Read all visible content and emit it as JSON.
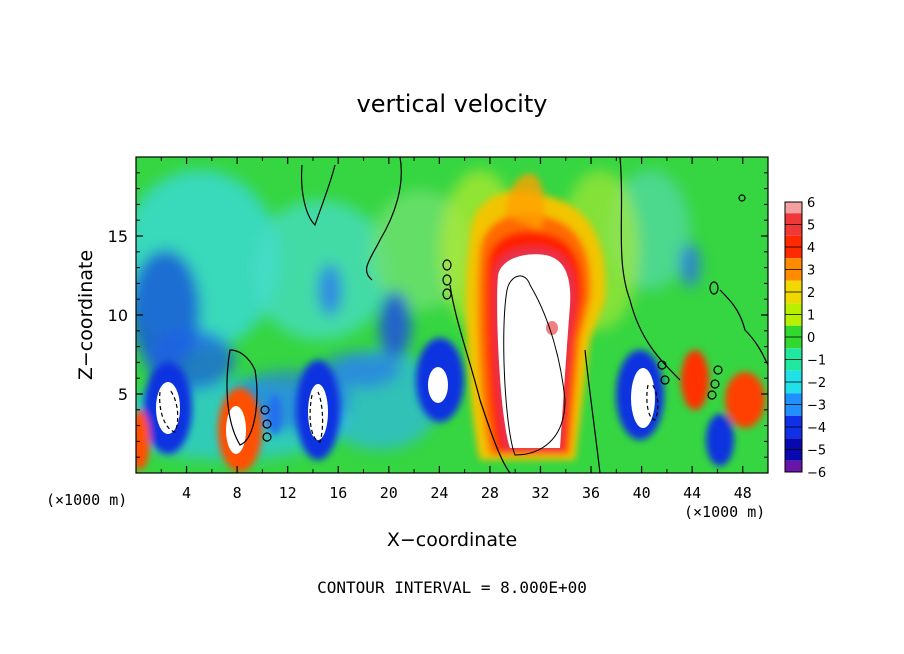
{
  "chart_data": {
    "type": "heatmap",
    "title": "vertical velocity",
    "xlabel": "X−coordinate",
    "ylabel": "Z−coordinate",
    "x_unit_left": "(×1000 m)",
    "x_unit_right": "(×1000 m)",
    "xlim": [
      0,
      50
    ],
    "ylim": [
      0,
      20
    ],
    "x_ticks": [
      {
        "value": 4,
        "label": "4"
      },
      {
        "value": 8,
        "label": "8"
      },
      {
        "value": 12,
        "label": "12"
      },
      {
        "value": 16,
        "label": "16"
      },
      {
        "value": 20,
        "label": "20"
      },
      {
        "value": 24,
        "label": "24"
      },
      {
        "value": 28,
        "label": "28"
      },
      {
        "value": 32,
        "label": "32"
      },
      {
        "value": 36,
        "label": "36"
      },
      {
        "value": 40,
        "label": "40"
      },
      {
        "value": 44,
        "label": "44"
      },
      {
        "value": 48,
        "label": "48"
      }
    ],
    "y_ticks": [
      {
        "value": 5,
        "label": "5"
      },
      {
        "value": 10,
        "label": "10"
      },
      {
        "value": 15,
        "label": "15"
      }
    ],
    "colorbar": {
      "min": -6,
      "max": 6,
      "levels": [
        {
          "value": 6,
          "label": "6",
          "color": "#f4a0a0"
        },
        {
          "value": 5,
          "label": "5",
          "color": "#f03838"
        },
        {
          "value": 4,
          "label": "4",
          "color": "#ff2a00"
        },
        {
          "value": 3,
          "label": "3",
          "color": "#ff8c00"
        },
        {
          "value": 2,
          "label": "2",
          "color": "#f0d800"
        },
        {
          "value": 1,
          "label": "1",
          "color": "#b8f000"
        },
        {
          "value": 0,
          "label": "0",
          "color": "#30d830"
        },
        {
          "value": -1,
          "label": "−1",
          "color": "#20e8a0"
        },
        {
          "value": -2,
          "label": "−2",
          "color": "#20e0e8"
        },
        {
          "value": -3,
          "label": "−3",
          "color": "#2090ff"
        },
        {
          "value": -4,
          "label": "−4",
          "color": "#1030e8"
        },
        {
          "value": -5,
          "label": "−5",
          "color": "#0808b0"
        },
        {
          "value": -6,
          "label": "−6",
          "color": "#6a14a8"
        }
      ]
    },
    "footnote": "CONTOUR INTERVAL = 8.000E+00"
  }
}
